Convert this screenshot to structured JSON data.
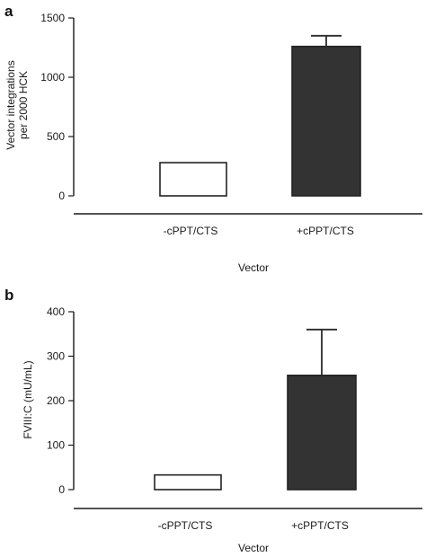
{
  "chart_data": [
    {
      "type": "bar",
      "panel_label": "a",
      "categories": [
        "-cPPT/CTS",
        "+cPPT/CTS"
      ],
      "values": [
        280,
        1260
      ],
      "error_upper": [
        null,
        1350
      ],
      "bar_fill": [
        "#ffffff",
        "#333333"
      ],
      "bar_stroke": "#222222",
      "ylabel": "Vector integrations\nper 2000 HCK",
      "xlabel": "Vector",
      "ylim": [
        0,
        1500
      ],
      "yticks": [
        0,
        500,
        1000,
        1500
      ],
      "grid": false
    },
    {
      "type": "bar",
      "panel_label": "b",
      "categories": [
        "-cPPT/CTS",
        "+cPPT/CTS"
      ],
      "values": [
        33,
        257
      ],
      "error_upper": [
        null,
        360
      ],
      "bar_fill": [
        "#ffffff",
        "#333333"
      ],
      "bar_stroke": "#222222",
      "ylabel": "FVIII:C (mU/mL)",
      "xlabel": "Vector",
      "ylim": [
        0,
        400
      ],
      "yticks": [
        0,
        100,
        200,
        300,
        400
      ],
      "grid": false
    }
  ]
}
